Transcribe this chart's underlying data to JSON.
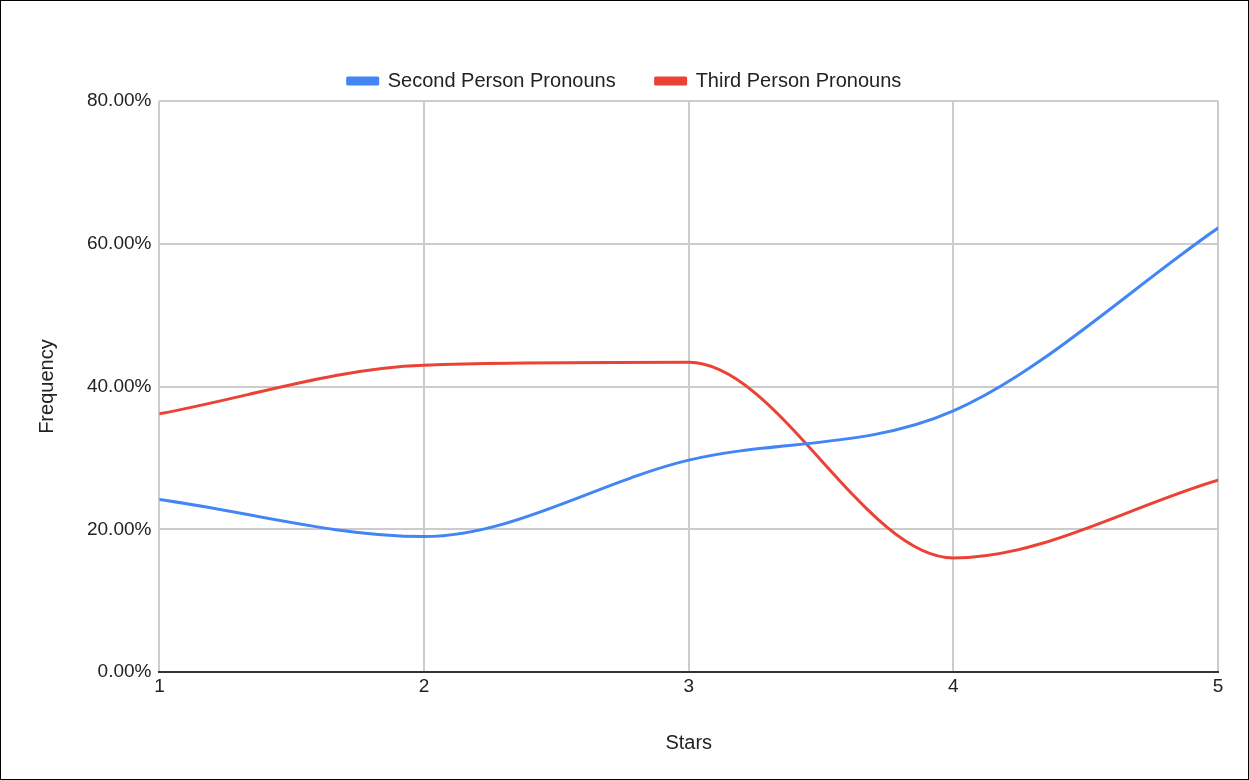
{
  "chart_data": {
    "type": "line",
    "xlabel": "Stars",
    "ylabel": "Frequency",
    "x": [
      1,
      2,
      3,
      4,
      5
    ],
    "xlim": [
      1,
      5
    ],
    "xticks": [
      1,
      2,
      3,
      4,
      5
    ],
    "ylim": [
      0,
      80
    ],
    "yticks": [
      {
        "value": 0,
        "label": "0.00%"
      },
      {
        "value": 20,
        "label": "20.00%"
      },
      {
        "value": 40,
        "label": "40.00%"
      },
      {
        "value": 60,
        "label": "60.00%"
      },
      {
        "value": 80,
        "label": "80.00%"
      }
    ],
    "series": [
      {
        "name": "Second Person Pronouns",
        "color": "#4285f4",
        "values": [
          24.2,
          19.0,
          29.7,
          36.6,
          62.2
        ]
      },
      {
        "name": "Third Person Pronouns",
        "color": "#ea4335",
        "values": [
          36.2,
          43.0,
          43.4,
          16.0,
          26.9
        ]
      }
    ],
    "grid": true,
    "legend": "top",
    "marker": "none",
    "line_style": "solid"
  }
}
